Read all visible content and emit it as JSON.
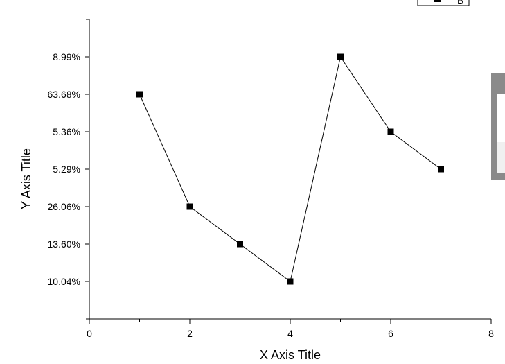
{
  "chart_data": {
    "type": "line",
    "xlabel": "X Axis Title",
    "ylabel": "Y Axis Title",
    "xlim": [
      0,
      8
    ],
    "xticks": [
      0,
      2,
      4,
      6,
      8
    ],
    "x_tick_labels": [
      "0",
      "2",
      "4",
      "6",
      "8"
    ],
    "y_categories": [
      "10.04%",
      "13.60%",
      "26.06%",
      "5.29%",
      "5.36%",
      "63.68%",
      "8.99%"
    ],
    "grid": false,
    "legend_position": "top-right",
    "series": [
      {
        "name": "B",
        "marker": "square",
        "color": "#000000",
        "x": [
          1,
          2,
          3,
          4,
          5,
          6,
          7
        ],
        "y": [
          "63.68%",
          "26.06%",
          "13.60%",
          "10.04%",
          "8.99%",
          "5.36%",
          "5.29%"
        ]
      }
    ]
  }
}
